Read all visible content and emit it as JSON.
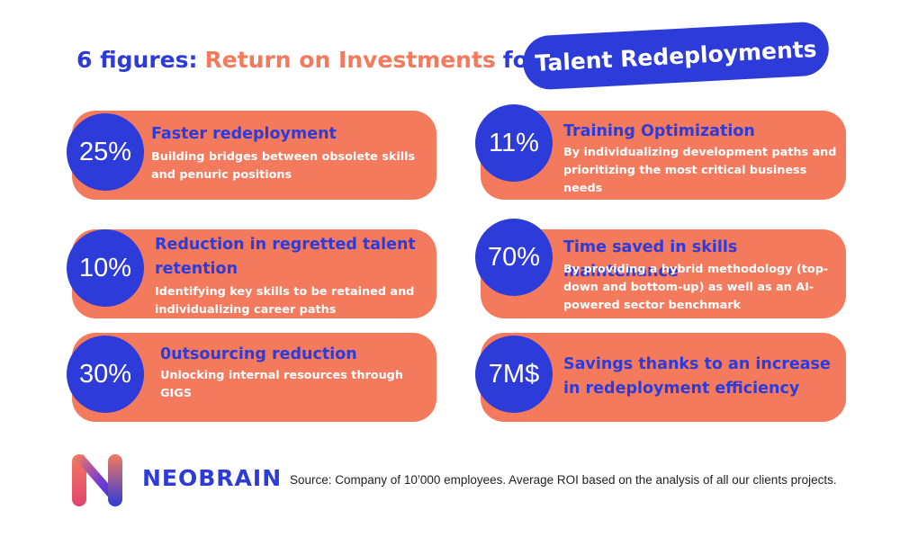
{
  "header": {
    "part1": "6 figures:",
    "part2": "Return on Investments",
    "part3": "for",
    "pill": "Talent Redeployments"
  },
  "cards": [
    {
      "figure": "25%",
      "title": "Faster redeployment",
      "description": "Building bridges between obsolete skills and penuric positions"
    },
    {
      "figure": "11%",
      "title": "Training Optimization",
      "description": "By individualizing development paths and prioritizing the most critical business needs"
    },
    {
      "figure": "10%",
      "title": "Reduction in regretted talent retention",
      "description": "Identifying key skills to be retained and individualizing career paths"
    },
    {
      "figure": "70%",
      "title": "Time saved in skills maintenance",
      "description": "By providing a hybrid methodology (top-down and bottom-up) as well as an AI-powered sector benchmark"
    },
    {
      "figure": "30%",
      "title": "0utsourcing reduction",
      "description": "Unlocking internal resources through GIGS"
    },
    {
      "figure": "7M$",
      "title": "Savings thanks to an increase in redeployment efficiency",
      "description": ""
    }
  ],
  "footer": {
    "brand": "NEOBRAIN",
    "logo_icon": "neobrain-n-logo-icon",
    "source": "Source: Company of 10’000 employees. Average ROI based on the analysis of all our clients projects."
  },
  "colors": {
    "blue": "#2d3bd8",
    "orange": "#f47a5e",
    "white": "#ffffff"
  }
}
